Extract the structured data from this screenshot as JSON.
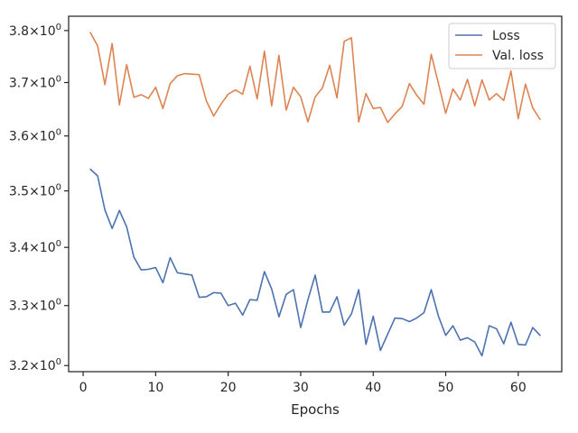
{
  "chart_data": {
    "type": "line",
    "title": "",
    "xlabel": "Epochs",
    "ylabel": "",
    "xlim": [
      -2,
      66
    ],
    "ylim": [
      3.19,
      3.828
    ],
    "y_scale": "log",
    "grid": false,
    "legend_position": "top-right",
    "x_ticks": [
      0,
      10,
      20,
      30,
      40,
      50,
      60
    ],
    "y_ticks": [
      {
        "value": 3.2,
        "mant": "3.2",
        "exp": "0"
      },
      {
        "value": 3.3,
        "mant": "3.3",
        "exp": "0"
      },
      {
        "value": 3.4,
        "mant": "3.4",
        "exp": "0"
      },
      {
        "value": 3.5,
        "mant": "3.5",
        "exp": "0"
      },
      {
        "value": 3.6,
        "mant": "3.6",
        "exp": "0"
      },
      {
        "value": 3.7,
        "mant": "3.7",
        "exp": "0"
      },
      {
        "value": 3.8,
        "mant": "3.8",
        "exp": "0"
      }
    ],
    "y_tick_prefix": "×10",
    "x": [
      1,
      2,
      3,
      4,
      5,
      6,
      7,
      8,
      9,
      10,
      11,
      12,
      13,
      14,
      15,
      16,
      17,
      18,
      19,
      20,
      21,
      22,
      23,
      24,
      25,
      26,
      27,
      28,
      29,
      30,
      31,
      32,
      33,
      34,
      35,
      36,
      37,
      38,
      39,
      40,
      41,
      42,
      43,
      44,
      45,
      46,
      47,
      48,
      49,
      50,
      51,
      52,
      53,
      54,
      55,
      56,
      57,
      58,
      59,
      60,
      61,
      62,
      63
    ],
    "series": [
      {
        "name": "Loss",
        "color": "#4c72b0",
        "values": [
          3.539,
          3.527,
          3.466,
          3.433,
          3.465,
          3.436,
          3.383,
          3.361,
          3.362,
          3.365,
          3.339,
          3.382,
          3.356,
          3.354,
          3.352,
          3.314,
          3.315,
          3.322,
          3.321,
          3.3,
          3.304,
          3.284,
          3.31,
          3.309,
          3.358,
          3.328,
          3.281,
          3.319,
          3.327,
          3.263,
          3.31,
          3.352,
          3.289,
          3.289,
          3.315,
          3.267,
          3.286,
          3.327,
          3.235,
          3.282,
          3.225,
          3.252,
          3.279,
          3.278,
          3.273,
          3.279,
          3.288,
          3.327,
          3.282,
          3.25,
          3.266,
          3.242,
          3.246,
          3.239,
          3.216,
          3.266,
          3.261,
          3.236,
          3.272,
          3.235,
          3.234,
          3.263,
          3.25
        ]
      },
      {
        "name": "Val. loss",
        "color": "#dd8452",
        "values": [
          3.796,
          3.77,
          3.696,
          3.775,
          3.658,
          3.734,
          3.672,
          3.677,
          3.67,
          3.691,
          3.651,
          3.698,
          3.713,
          3.717,
          3.716,
          3.715,
          3.665,
          3.637,
          3.659,
          3.678,
          3.686,
          3.678,
          3.731,
          3.669,
          3.76,
          3.656,
          3.752,
          3.648,
          3.691,
          3.673,
          3.626,
          3.673,
          3.69,
          3.733,
          3.671,
          3.779,
          3.786,
          3.626,
          3.679,
          3.651,
          3.653,
          3.625,
          3.641,
          3.655,
          3.698,
          3.676,
          3.659,
          3.754,
          3.698,
          3.642,
          3.688,
          3.667,
          3.706,
          3.656,
          3.705,
          3.667,
          3.679,
          3.666,
          3.722,
          3.632,
          3.697,
          3.652,
          3.631
        ]
      }
    ]
  }
}
